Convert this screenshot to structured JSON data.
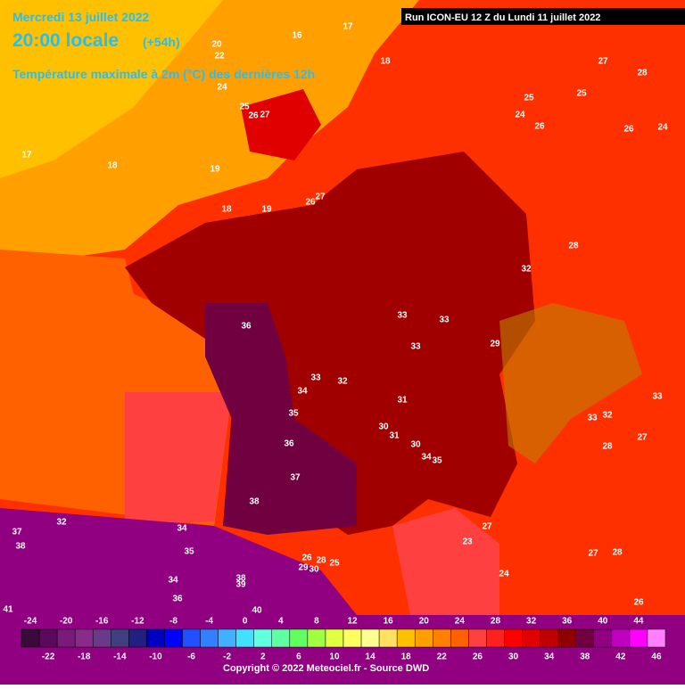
{
  "header": {
    "date": "Mercredi 13 juillet 2022",
    "time": "20:00 locale",
    "lead": "(+54h)",
    "title": "Température maximale à 2m (°C) des dernières 12h",
    "run": "Run ICON-EU 12 Z du Lundi 11 juillet 2022"
  },
  "map_labels": [
    "16",
    "17",
    "18",
    "20",
    "22",
    "24",
    "25",
    "26",
    "27",
    "18",
    "17",
    "19",
    "18",
    "19",
    "26",
    "27",
    "27",
    "28",
    "25",
    "25",
    "24",
    "26",
    "26",
    "24",
    "28",
    "32",
    "36",
    "33",
    "33",
    "33",
    "29",
    "33",
    "32",
    "34",
    "31",
    "35",
    "33",
    "33",
    "32",
    "30",
    "31",
    "30",
    "36",
    "28",
    "27",
    "34",
    "35",
    "37",
    "38",
    "32",
    "37",
    "38",
    "34",
    "35",
    "27",
    "23",
    "27",
    "28",
    "24",
    "26",
    "28",
    "25",
    "29",
    "30",
    "38",
    "39",
    "34",
    "36",
    "40",
    "26",
    "41"
  ],
  "colorbar": {
    "labels": [
      -24,
      -22,
      -20,
      -18,
      -16,
      -14,
      -12,
      -10,
      -8,
      -6,
      -4,
      -2,
      0,
      2,
      4,
      6,
      8,
      10,
      12,
      14,
      16,
      18,
      20,
      22,
      24,
      26,
      28,
      30,
      32,
      34,
      36,
      38,
      40,
      42,
      44,
      46
    ],
    "colors": [
      "#3a0a3a",
      "#5a0a5a",
      "#7a1a7a",
      "#8a2a8a",
      "#6a3a8a",
      "#404080",
      "#202080",
      "#0000c0",
      "#0000ff",
      "#2050ff",
      "#3080ff",
      "#40b0ff",
      "#40e0ff",
      "#60ffe0",
      "#60ffa0",
      "#60ff60",
      "#a0ff40",
      "#e0ff40",
      "#ffff60",
      "#ffff90",
      "#ffe060",
      "#ffc000",
      "#ffa000",
      "#ff8000",
      "#ff6000",
      "#ff4040",
      "#ff2020",
      "#ff0000",
      "#e00000",
      "#c00000",
      "#900000",
      "#700040",
      "#900080",
      "#c000c0",
      "#ff00ff",
      "#ff80ff"
    ]
  },
  "footer": {
    "copyright": "Copyright © 2022 Meteociel.fr - Source DWD"
  }
}
